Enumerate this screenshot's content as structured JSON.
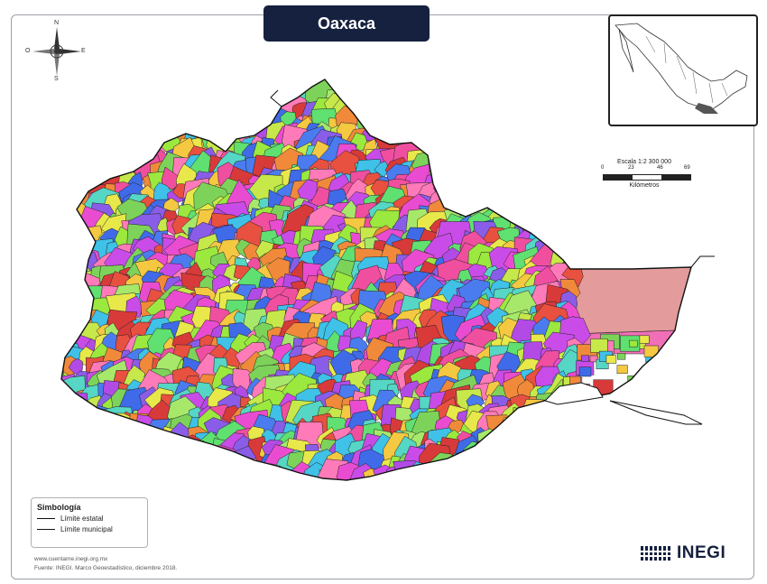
{
  "title": "Oaxaca",
  "compass": {
    "n": "N",
    "s": "S",
    "e": "E",
    "w": "O"
  },
  "scale": {
    "label": "Escala 1:2 300 000",
    "ticks": [
      "0",
      "23",
      "46",
      "69"
    ],
    "unit": "Kilómetros"
  },
  "legend": {
    "title": "Simbología",
    "items": [
      {
        "label": "Límite estatal"
      },
      {
        "label": "Límite municipal"
      }
    ]
  },
  "footer": {
    "url": "www.cuentame.inegi.org.mx",
    "source": "Fuente: INEGI. Marco Geoestadístico, diciembre 2018."
  },
  "logo": {
    "text": "INEGI"
  },
  "colors": {
    "title_bg": "#15213f",
    "inset_highlight": "#555555",
    "palette": [
      "#e94cd0",
      "#b24be6",
      "#7dd35a",
      "#f08a3a",
      "#3f6be8",
      "#9be83f",
      "#f04fa0",
      "#56d6c4",
      "#d83a3a",
      "#c7e84a",
      "#8a5de8",
      "#f5c842",
      "#3fc1e8",
      "#e8503f",
      "#a7e86b",
      "#c94ce8",
      "#5fe070",
      "#ff7ab8",
      "#e8e84a",
      "#4a7cf0"
    ]
  }
}
